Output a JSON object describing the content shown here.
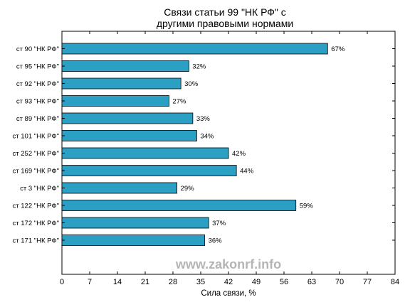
{
  "chart_data": {
    "type": "bar",
    "orientation": "horizontal",
    "title": [
      "Связи статьи 99 \"НК РФ\" с",
      "другими правовыми нормами"
    ],
    "xlabel": "Сила связи, %",
    "ylabel": "",
    "xlim": [
      0,
      84
    ],
    "xticks": [
      0,
      7,
      14,
      21,
      28,
      35,
      42,
      49,
      56,
      63,
      70,
      77,
      84
    ],
    "categories": [
      "ст 90 \"НК РФ\"",
      "ст 95 \"НК РФ\"",
      "ст 92 \"НК РФ\"",
      "ст 93 \"НК РФ\"",
      "ст 89 \"НК РФ\"",
      "ст 101 \"НК РФ\"",
      "ст 252 \"НК РФ\"",
      "ст 169 \"НК РФ\"",
      "ст 3 \"НК РФ\"",
      "ст 122 \"НК РФ\"",
      "ст 172 \"НК РФ\"",
      "ст 171 \"НК РФ\""
    ],
    "values": [
      67,
      32,
      30,
      27,
      33,
      34,
      42,
      44,
      29,
      59,
      37,
      36
    ],
    "value_labels": [
      "67%",
      "32%",
      "30%",
      "27%",
      "33%",
      "34%",
      "42%",
      "44%",
      "29%",
      "59%",
      "37%",
      "36%"
    ],
    "bar_color": "#2b9fc4",
    "grid": false,
    "watermark": "www.zakonrf.info"
  }
}
